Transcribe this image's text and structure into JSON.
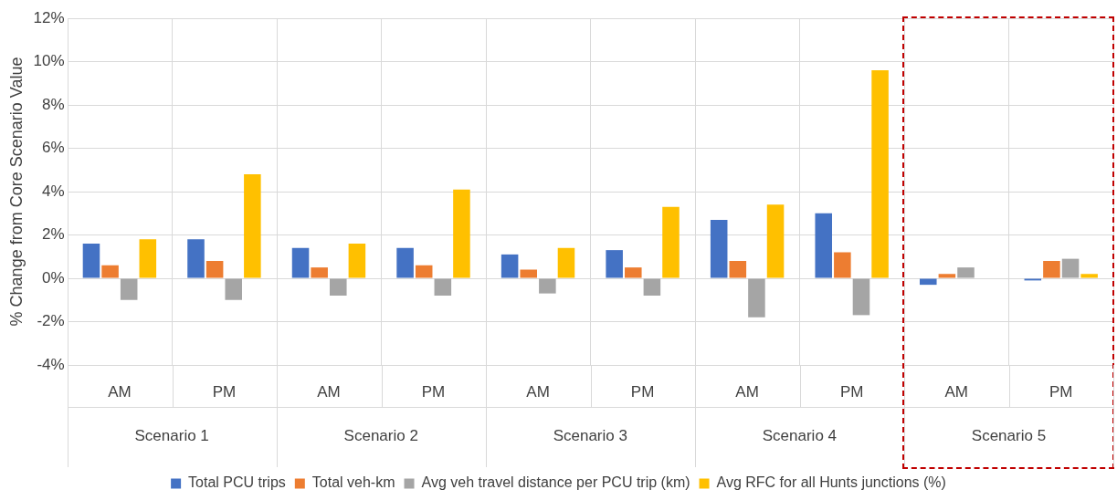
{
  "chart_data": {
    "type": "bar",
    "ylabel": "% Change from Core Scenario Value",
    "categories": [
      "AM",
      "PM",
      "AM",
      "PM",
      "AM",
      "PM",
      "AM",
      "PM",
      "AM",
      "PM"
    ],
    "series": [
      {
        "name": "Total PCU trips",
        "color": "#4472c4",
        "values": [
          1.6,
          1.8,
          1.4,
          1.4,
          1.1,
          1.3,
          2.7,
          3.0,
          -0.3,
          -0.1
        ]
      },
      {
        "name": "Total veh-km",
        "color": "#ed7d31",
        "values": [
          0.6,
          0.8,
          0.5,
          0.6,
          0.4,
          0.5,
          0.8,
          1.2,
          0.2,
          0.8
        ]
      },
      {
        "name": "Avg veh travel distance per PCU trip (km)",
        "color": "#a5a5a5",
        "values": [
          -1.0,
          -1.0,
          -0.8,
          -0.8,
          -0.7,
          -0.8,
          -1.8,
          -1.7,
          0.5,
          0.9
        ]
      },
      {
        "name": "Avg RFC for all Hunts junctions (%)",
        "color": "#ffc000",
        "values": [
          1.8,
          4.8,
          1.6,
          4.1,
          1.4,
          3.3,
          3.4,
          9.6,
          0,
          0.2
        ]
      }
    ],
    "annotations": [
      "Scenario 1",
      "Scenario 2",
      "Scenario 3",
      "Scenario 4",
      "Scenario 5"
    ],
    "ylim": [
      -4,
      12
    ],
    "yticks": [
      {
        "value": -4,
        "label": "-4%"
      },
      {
        "value": -2,
        "label": "-2%"
      },
      {
        "value": 0,
        "label": "0%"
      },
      {
        "value": 2,
        "label": "2%"
      },
      {
        "value": 4,
        "label": "4%"
      },
      {
        "value": 6,
        "label": "6%"
      },
      {
        "value": 8,
        "label": "8%"
      },
      {
        "value": 10,
        "label": "10%"
      },
      {
        "value": 12,
        "label": "12%"
      }
    ],
    "grid": "y",
    "legend": "bottom"
  }
}
